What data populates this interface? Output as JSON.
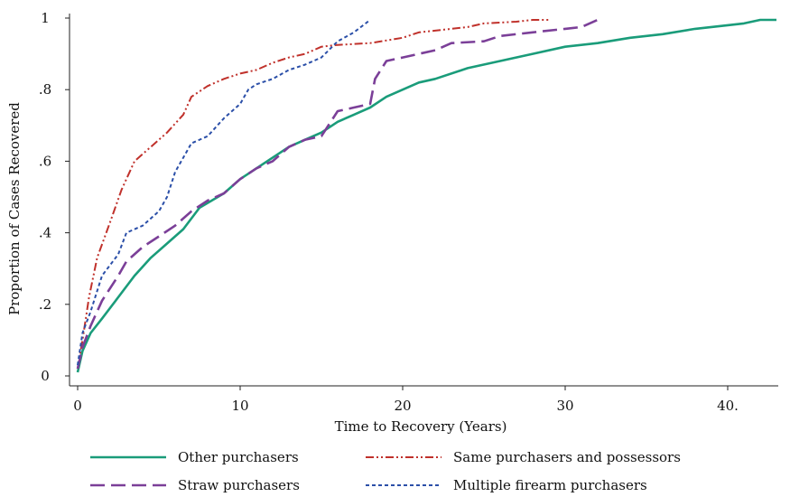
{
  "chart_data": {
    "type": "line",
    "title": "",
    "xlabel": "Time to Recovery (Years)",
    "ylabel": "Proportion of Cases Recovered",
    "xlim": [
      0,
      43
    ],
    "ylim": [
      0,
      1
    ],
    "x_ticks": [
      0,
      10,
      20,
      30,
      40
    ],
    "x_tick_labels": [
      "0",
      "10",
      "20",
      "30",
      "40."
    ],
    "y_ticks": [
      0,
      0.2,
      0.4,
      0.6,
      0.8,
      1
    ],
    "y_tick_labels": [
      "0",
      ".2",
      ".4",
      ".6",
      ".8",
      "1"
    ],
    "grid": false,
    "legend_position": "bottom",
    "series": [
      {
        "name": "Other purchasers",
        "color": "#1a9c7a",
        "dash": "solid",
        "points": [
          [
            0,
            0.01
          ],
          [
            0.3,
            0.07
          ],
          [
            0.8,
            0.12
          ],
          [
            1.5,
            0.16
          ],
          [
            2.5,
            0.22
          ],
          [
            3.5,
            0.28
          ],
          [
            4.5,
            0.33
          ],
          [
            5.5,
            0.37
          ],
          [
            6.5,
            0.41
          ],
          [
            7.5,
            0.47
          ],
          [
            9,
            0.51
          ],
          [
            10,
            0.55
          ],
          [
            11,
            0.58
          ],
          [
            12,
            0.61
          ],
          [
            13,
            0.64
          ],
          [
            14,
            0.66
          ],
          [
            15,
            0.68
          ],
          [
            16,
            0.71
          ],
          [
            17,
            0.73
          ],
          [
            18,
            0.75
          ],
          [
            19,
            0.78
          ],
          [
            20,
            0.8
          ],
          [
            21,
            0.82
          ],
          [
            22,
            0.83
          ],
          [
            24,
            0.86
          ],
          [
            26,
            0.88
          ],
          [
            28,
            0.9
          ],
          [
            30,
            0.92
          ],
          [
            32,
            0.93
          ],
          [
            34,
            0.945
          ],
          [
            36,
            0.955
          ],
          [
            38,
            0.97
          ],
          [
            40,
            0.98
          ],
          [
            41,
            0.985
          ],
          [
            42,
            0.995
          ],
          [
            43,
            0.995
          ]
        ]
      },
      {
        "name": "Same purchasers and possessors",
        "color": "#c0312b",
        "dash": "dashdotdot",
        "points": [
          [
            0,
            0.02
          ],
          [
            0.3,
            0.1
          ],
          [
            0.7,
            0.22
          ],
          [
            1.2,
            0.33
          ],
          [
            2,
            0.43
          ],
          [
            2.7,
            0.52
          ],
          [
            3.5,
            0.6
          ],
          [
            4.5,
            0.64
          ],
          [
            5.5,
            0.68
          ],
          [
            6.5,
            0.73
          ],
          [
            7,
            0.78
          ],
          [
            8,
            0.81
          ],
          [
            9,
            0.83
          ],
          [
            10,
            0.845
          ],
          [
            11,
            0.855
          ],
          [
            12,
            0.875
          ],
          [
            13,
            0.89
          ],
          [
            14,
            0.9
          ],
          [
            15,
            0.92
          ],
          [
            16,
            0.925
          ],
          [
            18,
            0.93
          ],
          [
            20,
            0.945
          ],
          [
            21,
            0.96
          ],
          [
            22,
            0.965
          ],
          [
            24,
            0.975
          ],
          [
            25,
            0.985
          ],
          [
            27,
            0.99
          ],
          [
            28,
            0.995
          ],
          [
            29,
            0.995
          ]
        ]
      },
      {
        "name": "Straw purchasers",
        "color": "#7b3f98",
        "dash": "longdash",
        "points": [
          [
            0,
            0.02
          ],
          [
            0.3,
            0.08
          ],
          [
            0.8,
            0.14
          ],
          [
            1.5,
            0.21
          ],
          [
            2.5,
            0.28
          ],
          [
            3,
            0.32
          ],
          [
            4,
            0.36
          ],
          [
            5,
            0.39
          ],
          [
            6,
            0.42
          ],
          [
            7,
            0.46
          ],
          [
            8,
            0.49
          ],
          [
            9,
            0.51
          ],
          [
            10,
            0.55
          ],
          [
            11,
            0.58
          ],
          [
            12,
            0.6
          ],
          [
            13,
            0.64
          ],
          [
            14,
            0.66
          ],
          [
            15,
            0.67
          ],
          [
            16,
            0.74
          ],
          [
            17,
            0.75
          ],
          [
            18,
            0.76
          ],
          [
            18.3,
            0.83
          ],
          [
            19,
            0.88
          ],
          [
            20,
            0.89
          ],
          [
            21,
            0.9
          ],
          [
            22,
            0.91
          ],
          [
            23,
            0.93
          ],
          [
            25,
            0.935
          ],
          [
            26,
            0.95
          ],
          [
            28,
            0.96
          ],
          [
            30,
            0.97
          ],
          [
            31,
            0.975
          ],
          [
            32,
            0.995
          ]
        ]
      },
      {
        "name": "Multiple firearm purchasers",
        "color": "#2b4fa8",
        "dash": "shortdash",
        "points": [
          [
            0,
            0.03
          ],
          [
            0.3,
            0.12
          ],
          [
            0.8,
            0.18
          ],
          [
            1.5,
            0.28
          ],
          [
            2.5,
            0.34
          ],
          [
            3,
            0.4
          ],
          [
            4,
            0.42
          ],
          [
            5,
            0.46
          ],
          [
            5.5,
            0.5
          ],
          [
            6,
            0.57
          ],
          [
            7,
            0.65
          ],
          [
            8,
            0.67
          ],
          [
            9,
            0.72
          ],
          [
            10,
            0.76
          ],
          [
            10.5,
            0.8
          ],
          [
            11,
            0.815
          ],
          [
            12,
            0.83
          ],
          [
            13,
            0.855
          ],
          [
            14,
            0.87
          ],
          [
            15,
            0.89
          ],
          [
            16,
            0.935
          ],
          [
            17,
            0.96
          ],
          [
            18,
            0.995
          ]
        ]
      }
    ]
  }
}
